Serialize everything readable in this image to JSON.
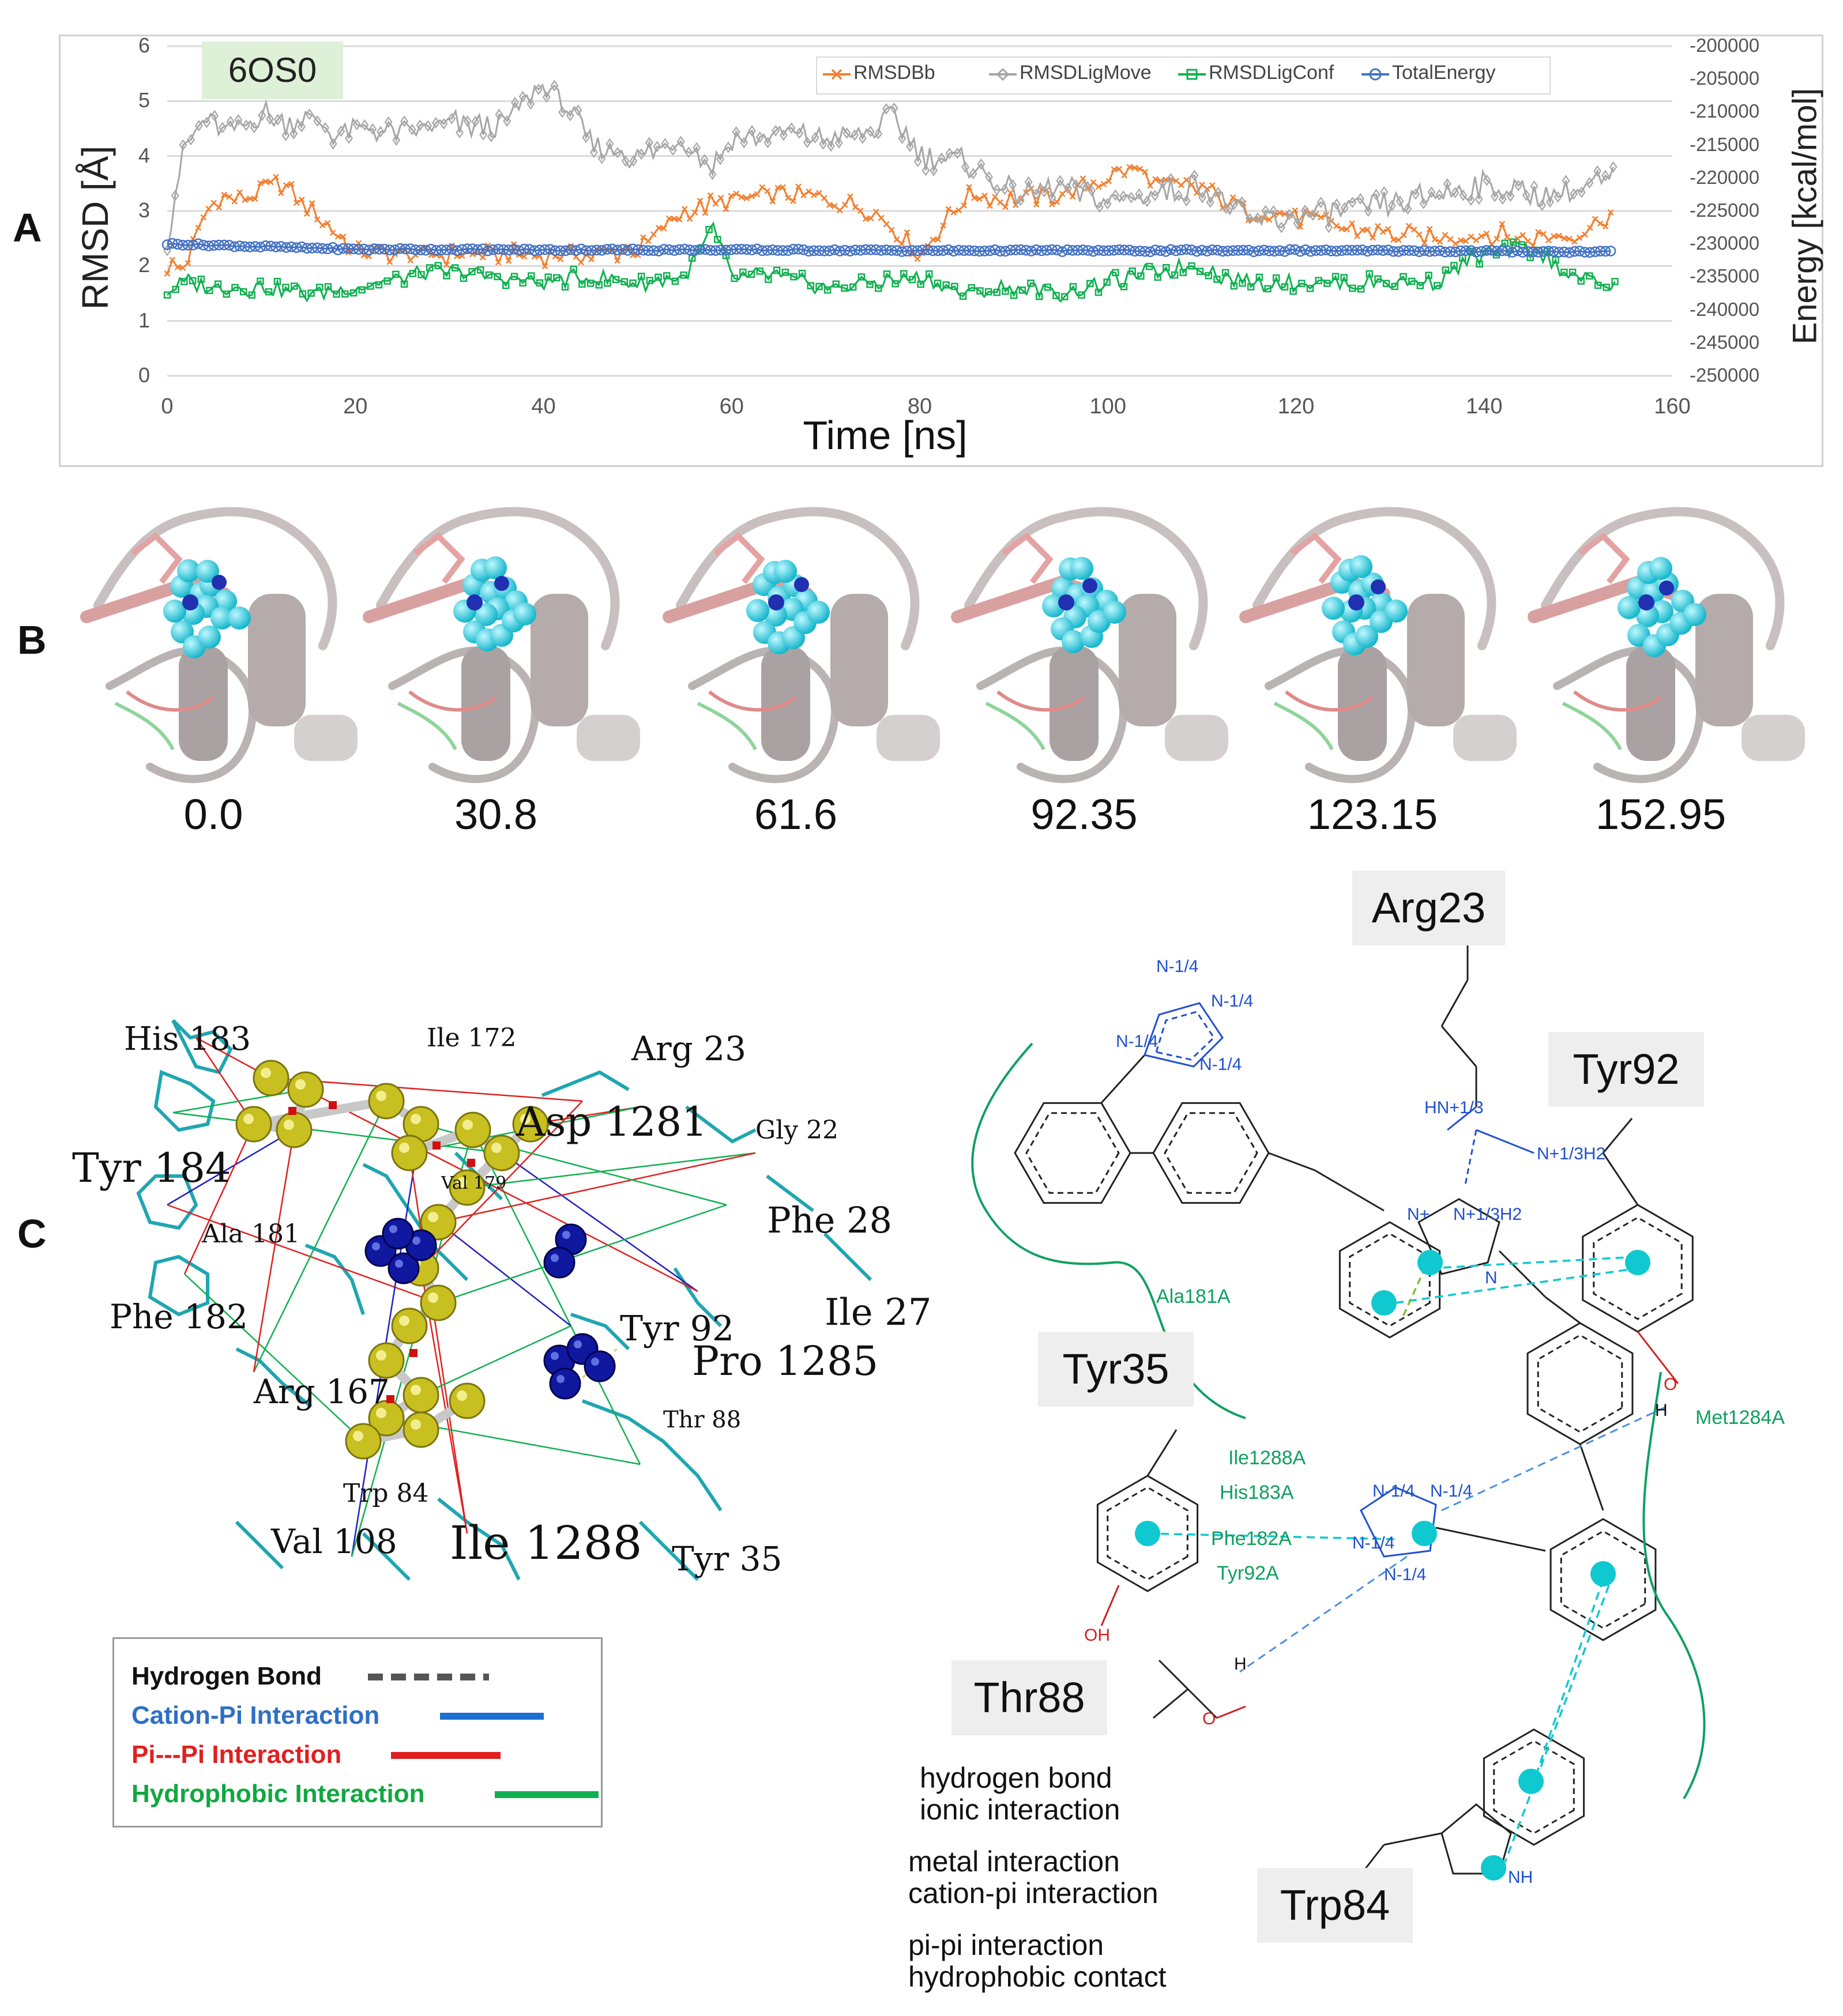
{
  "panels": {
    "a": "A",
    "b": "B",
    "c": "C"
  },
  "chart_data": {
    "type": "line",
    "title": "6OS0",
    "xlabel": "Time [ns]",
    "ylabel": "RMSD [Å]",
    "y2label": "Energy [kcal/mol]",
    "xlim": [
      0,
      160
    ],
    "ylim": [
      0,
      6
    ],
    "y2lim": [
      -250000,
      -200000
    ],
    "x_ticks": [
      "0",
      "20",
      "40",
      "60",
      "80",
      "100",
      "120",
      "140",
      "160"
    ],
    "y_ticks": [
      "0",
      "1",
      "2",
      "3",
      "4",
      "5",
      "6"
    ],
    "y2_ticks": [
      "-200000",
      "-205000",
      "-210000",
      "-215000",
      "-220000",
      "-225000",
      "-230000",
      "-235000",
      "-240000",
      "-245000",
      "-250000"
    ],
    "grid": "horizontal",
    "legend_position": "top-right",
    "colors": {
      "RMSDBb": "#f28030",
      "RMSDLigMove": "#a6a6a6",
      "RMSDLigConf": "#10b050",
      "TotalEnergy": "#4472c4"
    },
    "series": [
      {
        "name": "RMSDBb",
        "axis": "left",
        "x": [
          0,
          2,
          4,
          6,
          8,
          10,
          12,
          14,
          16,
          18,
          20,
          25,
          30,
          35,
          40,
          45,
          50,
          55,
          60,
          65,
          70,
          75,
          80,
          85,
          90,
          95,
          100,
          103,
          105,
          110,
          115,
          120,
          125,
          130,
          135,
          140,
          145,
          150,
          154
        ],
        "values": [
          2.0,
          2.0,
          3.0,
          3.3,
          3.2,
          3.4,
          3.5,
          3.2,
          2.9,
          2.6,
          2.3,
          2.2,
          2.2,
          2.2,
          2.2,
          2.2,
          2.3,
          3.0,
          3.2,
          3.3,
          3.2,
          3.0,
          2.2,
          3.3,
          3.2,
          3.3,
          3.6,
          3.8,
          3.5,
          3.4,
          3.0,
          2.9,
          2.7,
          2.6,
          2.5,
          2.6,
          2.5,
          2.6,
          3.0
        ]
      },
      {
        "name": "RMSDLigMove",
        "axis": "left",
        "x": [
          0,
          1,
          2,
          4,
          6,
          8,
          10,
          12,
          15,
          18,
          20,
          25,
          30,
          35,
          38,
          40,
          42,
          45,
          50,
          55,
          58,
          60,
          65,
          70,
          75,
          77,
          80,
          85,
          90,
          95,
          100,
          105,
          110,
          115,
          120,
          125,
          130,
          135,
          140,
          145,
          150,
          154
        ],
        "values": [
          2.5,
          3.5,
          4.2,
          4.7,
          4.4,
          4.5,
          4.8,
          4.6,
          4.7,
          4.4,
          4.5,
          4.4,
          4.6,
          4.5,
          5.0,
          5.3,
          5.0,
          4.2,
          4.0,
          4.3,
          3.8,
          4.3,
          4.4,
          4.3,
          4.4,
          4.8,
          4.0,
          3.9,
          3.3,
          3.4,
          3.2,
          3.3,
          3.5,
          2.8,
          2.9,
          3.0,
          3.1,
          3.3,
          3.5,
          3.3,
          3.4,
          3.6
        ]
      },
      {
        "name": "RMSDLigConf",
        "axis": "left",
        "x": [
          0,
          2,
          5,
          10,
          15,
          20,
          25,
          30,
          35,
          40,
          45,
          50,
          55,
          58,
          60,
          65,
          70,
          75,
          80,
          85,
          90,
          95,
          100,
          105,
          110,
          112,
          115,
          120,
          125,
          130,
          135,
          138,
          142,
          145,
          150,
          154
        ],
        "values": [
          1.5,
          1.7,
          1.6,
          1.6,
          1.5,
          1.6,
          1.8,
          1.9,
          1.8,
          1.7,
          1.8,
          1.7,
          1.8,
          2.7,
          1.8,
          1.8,
          1.6,
          1.7,
          1.8,
          1.5,
          1.6,
          1.5,
          1.7,
          1.9,
          2.0,
          1.8,
          1.7,
          1.7,
          1.7,
          1.7,
          1.7,
          2.1,
          2.3,
          2.3,
          1.8,
          1.6
        ]
      },
      {
        "name": "TotalEnergy",
        "axis": "right",
        "x": [
          0,
          10,
          20,
          40,
          60,
          80,
          100,
          120,
          140,
          154
        ],
        "values": [
          -230000,
          -230400,
          -230800,
          -230900,
          -230900,
          -231000,
          -231000,
          -231000,
          -231100,
          -231200
        ]
      }
    ]
  },
  "snapshots": {
    "labels": [
      "0.0",
      "30.8",
      "61.6",
      "92.35",
      "123.15",
      "152.95"
    ]
  },
  "panel_c_3d": {
    "residues": [
      "His 183",
      "Ile 172",
      "Arg 23",
      "Asp 1281",
      "Gly 22",
      "Tyr 184",
      "Val 179",
      "Phe 28",
      "Ala 181",
      "Ile 27",
      "Phe 182",
      "Tyr 92",
      "Pro 1285",
      "Arg 167",
      "Thr 88",
      "Trp 84",
      "Val 108",
      "Ile 1288",
      "Tyr 35"
    ],
    "legend": [
      {
        "label": "Hydrogen Bond",
        "color": "#111111",
        "line_color": "#555555",
        "style": "dashed"
      },
      {
        "label": "Cation-Pi Interaction",
        "color": "#2f6fc4",
        "line_color": "#1f6fd0",
        "style": "solid"
      },
      {
        "label": "Pi---Pi Interaction",
        "color": "#e02020",
        "line_color": "#e02020",
        "style": "solid"
      },
      {
        "label": "Hydrophobic Interaction",
        "color": "#10a840",
        "line_color": "#10b050",
        "style": "solid"
      }
    ]
  },
  "panel_c_2d": {
    "residue_boxes": [
      "Arg23",
      "Tyr92",
      "Tyr35",
      "Thr88",
      "Trp84"
    ],
    "contact_labels": [
      "Ala181A",
      "Met1284A",
      "Ile1288A",
      "His183A",
      "Phe182A",
      "Tyr92A"
    ],
    "atoms": {
      "tz_n1": "N-1/4",
      "tz_n2": "N-1/4",
      "tz_n3": "N-1/4",
      "tz_n4": "N-1/4",
      "hn": "HN+1/3",
      "n_h2_a": "N+1/3H2",
      "n_plus": "N+",
      "n_h2_b": "N+1/3H2",
      "n_imid": "N",
      "o_tyr92": "O",
      "h_tyr92": "H",
      "tz2_n1": "N-1/4",
      "tz2_n2": "N-1/4",
      "tz2_n3": "N-1/4",
      "tz2_n4": "N-1/4",
      "oh_tyr35": "OH",
      "h_thr88": "H",
      "o_thr88": "O",
      "nh_trp84": "NH"
    },
    "legend": [
      {
        "label": "hydrogen bond",
        "color": "#4a90e2"
      },
      {
        "label": "ionic interaction",
        "color": "#e030d0"
      },
      {
        "label": "metal interaction",
        "color": "#f0c020"
      },
      {
        "label": "cation-pi interaction",
        "color": "#80c030"
      },
      {
        "label": "pi-pi interaction",
        "color": "#10c8d0"
      },
      {
        "label": "hydrophobic contact",
        "color": "#10a060"
      }
    ]
  }
}
